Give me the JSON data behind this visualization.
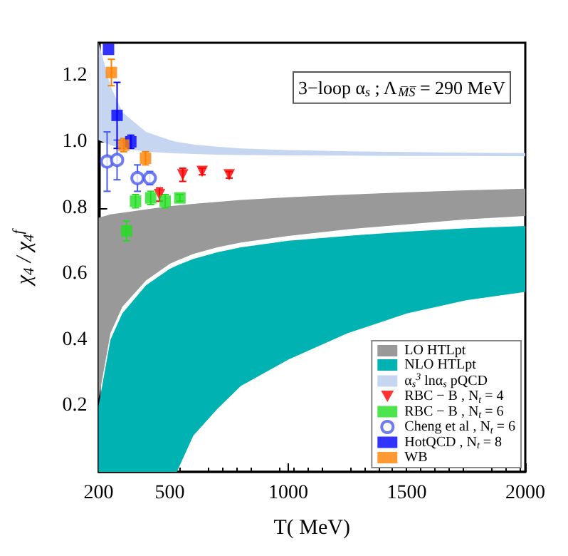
{
  "chart_data": {
    "type": "scatter",
    "xlabel": "T( MeV)",
    "ylabel": "χ$_{4}$ / χ$_{4}$$^{f}$",
    "xlim": [
      200,
      2000
    ],
    "xticks": [
      200,
      500,
      1000,
      1500,
      2000
    ],
    "ylim": [
      0,
      1.3
    ],
    "yticks": [
      0.2,
      0.4,
      0.6,
      0.8,
      {
        "value": 1,
        "label": "1.0"
      },
      1.2
    ],
    "grid": false,
    "legend": "bottom right",
    "annotations": [
      "3−loop α$_{s}$ ; Λ$_{M̅S̅}$ = 290 MeV"
    ],
    "series": [
      {
        "name": "LO HTLpt",
        "type": "area",
        "color": "#999999",
        "x": [
          200,
          250,
          300,
          400,
          500,
          530,
          600,
          700,
          800,
          1000,
          1250,
          1500,
          1750,
          2000
        ],
        "values": [
          null,
          null,
          null,
          null,
          null,
          null,
          null,
          null,
          null,
          null,
          null,
          null,
          null,
          null
        ],
        "lower": [
          0.22,
          0.42,
          0.5,
          0.58,
          0.63,
          0.64,
          0.66,
          0.68,
          0.695,
          0.715,
          0.735,
          0.75,
          0.765,
          0.775
        ],
        "upper": [
          0.77,
          0.78,
          0.785,
          0.795,
          0.805,
          0.807,
          0.812,
          0.818,
          0.824,
          0.832,
          0.84,
          0.847,
          0.853,
          0.858
        ]
      },
      {
        "name": "NLO HTLpt",
        "type": "area",
        "color": "#00b2b2",
        "x": [
          200,
          250,
          300,
          400,
          500,
          530,
          600,
          700,
          800,
          1000,
          1250,
          1500,
          1750,
          2000
        ],
        "values": [
          null,
          null,
          null,
          null,
          null,
          null,
          null,
          null,
          null,
          null,
          null,
          null,
          null,
          null
        ],
        "lower": [
          0,
          0,
          0,
          0,
          0,
          0,
          0.11,
          0.19,
          0.26,
          0.34,
          0.42,
          0.48,
          0.52,
          0.545
        ],
        "upper": [
          0.2,
          0.4,
          0.48,
          0.565,
          0.615,
          0.625,
          0.645,
          0.665,
          0.68,
          0.7,
          0.715,
          0.728,
          0.738,
          0.745
        ]
      },
      {
        "name": "α$_{s}$$^{3}$ lnα$_{s}$ pQCD",
        "type": "area",
        "color": "#c6d6f0",
        "x": [
          200,
          250,
          300,
          400,
          500,
          530,
          600,
          700,
          800,
          1000,
          1250,
          1500,
          1750,
          2000
        ],
        "values": [
          null,
          null,
          null,
          null,
          null,
          null,
          null,
          null,
          null,
          null,
          null,
          null,
          null,
          null
        ],
        "lower": [
          1.005,
          0.99,
          0.98,
          0.97,
          0.966,
          0.965,
          0.963,
          0.961,
          0.96,
          0.959,
          0.958,
          0.957,
          0.957,
          0.956
        ],
        "upper": [
          1.3,
          1.17,
          1.09,
          1.03,
          1.005,
          1.0,
          0.992,
          0.985,
          0.98,
          0.975,
          0.971,
          0.969,
          0.967,
          0.966
        ]
      },
      {
        "name": "RBC − B , N$_{t}$ = 4",
        "type": "scatter",
        "marker": "triangle",
        "color": "#ff0000",
        "x": [
          457,
          555,
          637,
          751
        ],
        "values": [
          0.84,
          0.9,
          0.91,
          0.9
        ],
        "errors": [
          0.02,
          0.02,
          0.01,
          0.01
        ]
      },
      {
        "name": "RBC − B , N$_{t}$ = 6",
        "type": "scatter",
        "marker": "square",
        "color": "#22dd22",
        "x": [
          318,
          356,
          420,
          481,
          543
        ],
        "values": [
          0.73,
          0.82,
          0.83,
          0.82,
          0.83
        ],
        "errors": [
          0.03,
          0.02,
          0.02,
          0.02,
          0.01
        ]
      },
      {
        "name": "Cheng et al , N$_{t}$ = 6",
        "type": "scatter",
        "marker": "circle",
        "color": "#4a5bef",
        "x": [
          236,
          278,
          364,
          416
        ],
        "values": [
          0.94,
          0.945,
          0.89,
          0.89
        ],
        "errors": [
          0.09,
          0.06,
          0.04,
          0.02
        ]
      },
      {
        "name": "HotQCD , N$_{t}$ = 8",
        "type": "scatter",
        "marker": "square",
        "color": "#0000ff",
        "x": [
          242,
          278,
          336
        ],
        "values": [
          1.28,
          1.08,
          1.0
        ],
        "errors": [
          null,
          0.1,
          0.02
        ]
      },
      {
        "name": "WB",
        "type": "scatter",
        "marker": "square",
        "color": "#ff7f00",
        "x": [
          254,
          306,
          398
        ],
        "values": [
          1.21,
          0.99,
          0.95
        ],
        "errors": [
          0.04,
          0.02,
          0.02
        ]
      }
    ]
  }
}
